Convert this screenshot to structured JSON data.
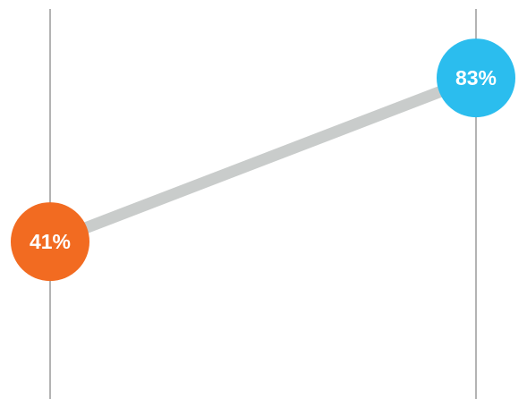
{
  "chart_data": {
    "type": "line",
    "categories": [
      "",
      ""
    ],
    "series": [
      {
        "values": [
          41,
          83
        ]
      }
    ],
    "data_labels": [
      "41%",
      "83%"
    ],
    "ylim": [
      0,
      100
    ],
    "grid": false,
    "colors": {
      "connector": "#c9cccb",
      "start_point": "#f26b21",
      "end_point": "#2bbdee",
      "axis_line": "#9a9a9a",
      "label_text": "#ffffff"
    }
  }
}
